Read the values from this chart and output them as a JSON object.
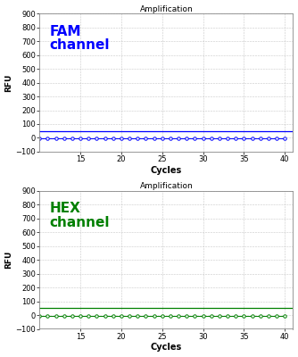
{
  "title": "Amplification",
  "xlabel": "Cycles",
  "ylabel": "RFU",
  "xlim": [
    10,
    41
  ],
  "ylim": [
    -100,
    900
  ],
  "yticks": [
    -100,
    0,
    100,
    200,
    300,
    400,
    500,
    600,
    700,
    800,
    900
  ],
  "xticks": [
    15,
    20,
    25,
    30,
    35,
    40
  ],
  "cycles_start": 10,
  "cycles_end": 40,
  "fam_color": "#0000FF",
  "hex_color": "#008000",
  "fam_label": "FAM\nchannel",
  "hex_label": "HEX\nchannel",
  "threshold_fam": 50,
  "threshold_hex": 50,
  "data_y_fam": [
    -5,
    -5,
    -5,
    -5,
    -5,
    -5,
    -5,
    -5,
    -5,
    -5,
    -5,
    -5,
    -5,
    -5,
    -5,
    -5,
    -5,
    -5,
    -5,
    -5,
    -5,
    -5,
    -5,
    -5,
    -5,
    -5,
    -5,
    -5,
    -5,
    -5,
    -5
  ],
  "data_y_hex": [
    -5,
    -5,
    -5,
    -5,
    -5,
    -5,
    -5,
    -5,
    -5,
    -5,
    -5,
    -5,
    -5,
    -5,
    -5,
    -5,
    -5,
    -5,
    -5,
    -5,
    -5,
    -5,
    -5,
    -5,
    -5,
    -5,
    -5,
    -5,
    -5,
    -5,
    -5
  ],
  "background_color": "#ffffff",
  "grid_color": "#bbbbbb",
  "label_fontsize": 11,
  "title_fontsize": 6.5,
  "axis_label_fontsize": 6.5,
  "tick_fontsize": 6,
  "cycles_xlabel_fontsize": 7
}
